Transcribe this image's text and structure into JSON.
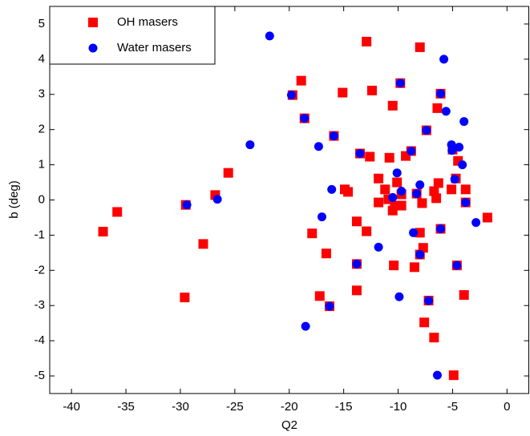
{
  "chart_data": {
    "type": "scatter",
    "x_label": "Q2",
    "y_label": "b (deg)",
    "xlim": [
      -42,
      2
    ],
    "ylim": [
      -5.5,
      5.5
    ],
    "xticks": [
      -40,
      -35,
      -30,
      -25,
      -20,
      -15,
      -10,
      -5,
      0
    ],
    "yticks": [
      -5,
      -4,
      -3,
      -2,
      -1,
      0,
      1,
      2,
      3,
      4,
      5
    ],
    "legend": "upper left",
    "series": [
      {
        "name": "OH masers",
        "color": "#ff0000",
        "marker": "square",
        "x": [
          -37.1,
          -35.8,
          -29.6,
          -29.5,
          -27.9,
          -26.8,
          -25.6,
          -19.7,
          -18.9,
          -18.6,
          -17.9,
          -17.2,
          -16.6,
          -16.3,
          -15.9,
          -15.1,
          -14.9,
          -14.6,
          -13.8,
          -13.8,
          -13.8,
          -13.5,
          -12.9,
          -12.9,
          -12.6,
          -12.4,
          -11.8,
          -11.8,
          -11.2,
          -10.9,
          -10.8,
          -10.5,
          -10.4,
          -10.5,
          -10.3,
          -10.1,
          -9.8,
          -9.7,
          -9.7,
          -9.3,
          -8.8,
          -8.5,
          -8.3,
          -8.0,
          -8.0,
          -8.0,
          -7.8,
          -7.7,
          -7.6,
          -7.4,
          -7.2,
          -6.7,
          -6.7,
          -6.5,
          -6.4,
          -6.3,
          -6.1,
          -6.1,
          -5.1,
          -4.9,
          -5.0,
          -4.7,
          -4.6,
          -4.5,
          -3.95,
          -3.8,
          -3.8,
          -1.8
        ],
        "values": [
          -0.9,
          -0.34,
          -2.77,
          -0.14,
          -1.25,
          0.14,
          0.77,
          2.98,
          3.39,
          2.32,
          -0.95,
          -2.73,
          -1.52,
          -3.02,
          1.82,
          3.05,
          0.3,
          0.23,
          -0.61,
          -1.82,
          -2.57,
          1.32,
          -0.89,
          4.5,
          1.23,
          3.11,
          0.61,
          -0.07,
          0.3,
          0.02,
          1.2,
          2.68,
          -1.86,
          -0.3,
          -0.16,
          0.5,
          3.32,
          -0.16,
          0.16,
          1.25,
          1.39,
          -1.91,
          0.18,
          -0.93,
          4.34,
          -1.55,
          -0.09,
          -1.36,
          -3.48,
          1.98,
          -2.86,
          -3.91,
          0.25,
          0.05,
          2.61,
          0.48,
          3.02,
          -0.82,
          0.3,
          -4.98,
          1.43,
          0.61,
          -1.86,
          1.11,
          -2.7,
          0.3,
          -0.07,
          -0.5
        ]
      },
      {
        "name": "Water masers",
        "color": "#0000ff",
        "marker": "circle",
        "x": [
          -21.8,
          -23.6,
          -29.4,
          -26.6,
          -19.8,
          -18.6,
          -18.5,
          -17.3,
          -17.0,
          -16.1,
          -15.9,
          -16.3,
          -13.8,
          -13.5,
          -11.8,
          -10.5,
          -10.1,
          -9.9,
          -9.8,
          -9.7,
          -8.8,
          -8.6,
          -8.3,
          -8.0,
          -8.0,
          -7.4,
          -7.2,
          -6.4,
          -6.1,
          -5.8,
          -5.6,
          -5.1,
          -5.05,
          -4.8,
          -4.6,
          -4.4,
          -4.1,
          -3.95,
          -3.8,
          -2.85,
          -6.1
        ],
        "values": [
          4.66,
          1.57,
          -0.14,
          0.02,
          2.98,
          2.32,
          -3.59,
          1.52,
          -0.48,
          0.3,
          1.82,
          -3.02,
          -1.82,
          1.32,
          -1.34,
          0.07,
          0.77,
          -2.75,
          3.32,
          0.25,
          1.39,
          -0.93,
          0.18,
          0.43,
          -1.55,
          1.98,
          -2.86,
          -4.98,
          -0.82,
          4.0,
          2.52,
          1.57,
          1.41,
          0.59,
          -1.86,
          1.5,
          1.0,
          2.23,
          -0.07,
          -0.64,
          3.02
        ]
      }
    ]
  }
}
